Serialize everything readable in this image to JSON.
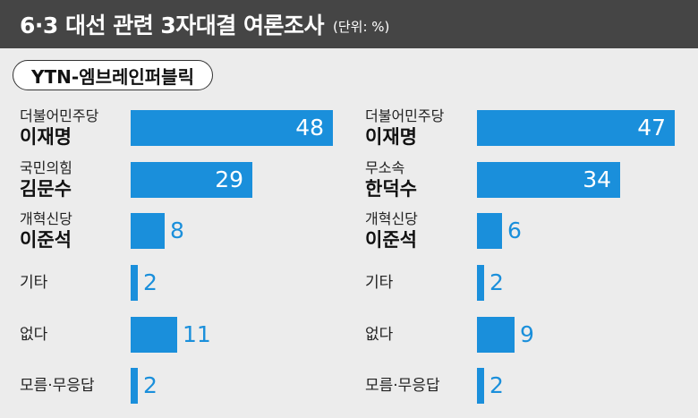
{
  "header": {
    "title": "6·3 대선 관련 3자대결 여론조사",
    "unit": "(단위: %)"
  },
  "source": "YTN-엠브레인퍼블릭",
  "chart_data": [
    {
      "type": "bar",
      "orientation": "horizontal",
      "rows": [
        {
          "party": "더불어민주당",
          "name": "이재명",
          "value": 48
        },
        {
          "party": "국민의힘",
          "name": "김문수",
          "value": 29
        },
        {
          "party": "개혁신당",
          "name": "이준석",
          "value": 8
        },
        {
          "party": "",
          "name": "기타",
          "value": 2
        },
        {
          "party": "",
          "name": "없다",
          "value": 11
        },
        {
          "party": "",
          "name": "모름·무응답",
          "value": 2
        }
      ],
      "color": "#1a8fdb"
    },
    {
      "type": "bar",
      "orientation": "horizontal",
      "rows": [
        {
          "party": "더불어민주당",
          "name": "이재명",
          "value": 47
        },
        {
          "party": "무소속",
          "name": "한덕수",
          "value": 34
        },
        {
          "party": "개혁신당",
          "name": "이준석",
          "value": 6
        },
        {
          "party": "",
          "name": "기타",
          "value": 2
        },
        {
          "party": "",
          "name": "없다",
          "value": 9
        },
        {
          "party": "",
          "name": "모름·무응답",
          "value": 2
        }
      ],
      "color": "#1a8fdb"
    }
  ]
}
